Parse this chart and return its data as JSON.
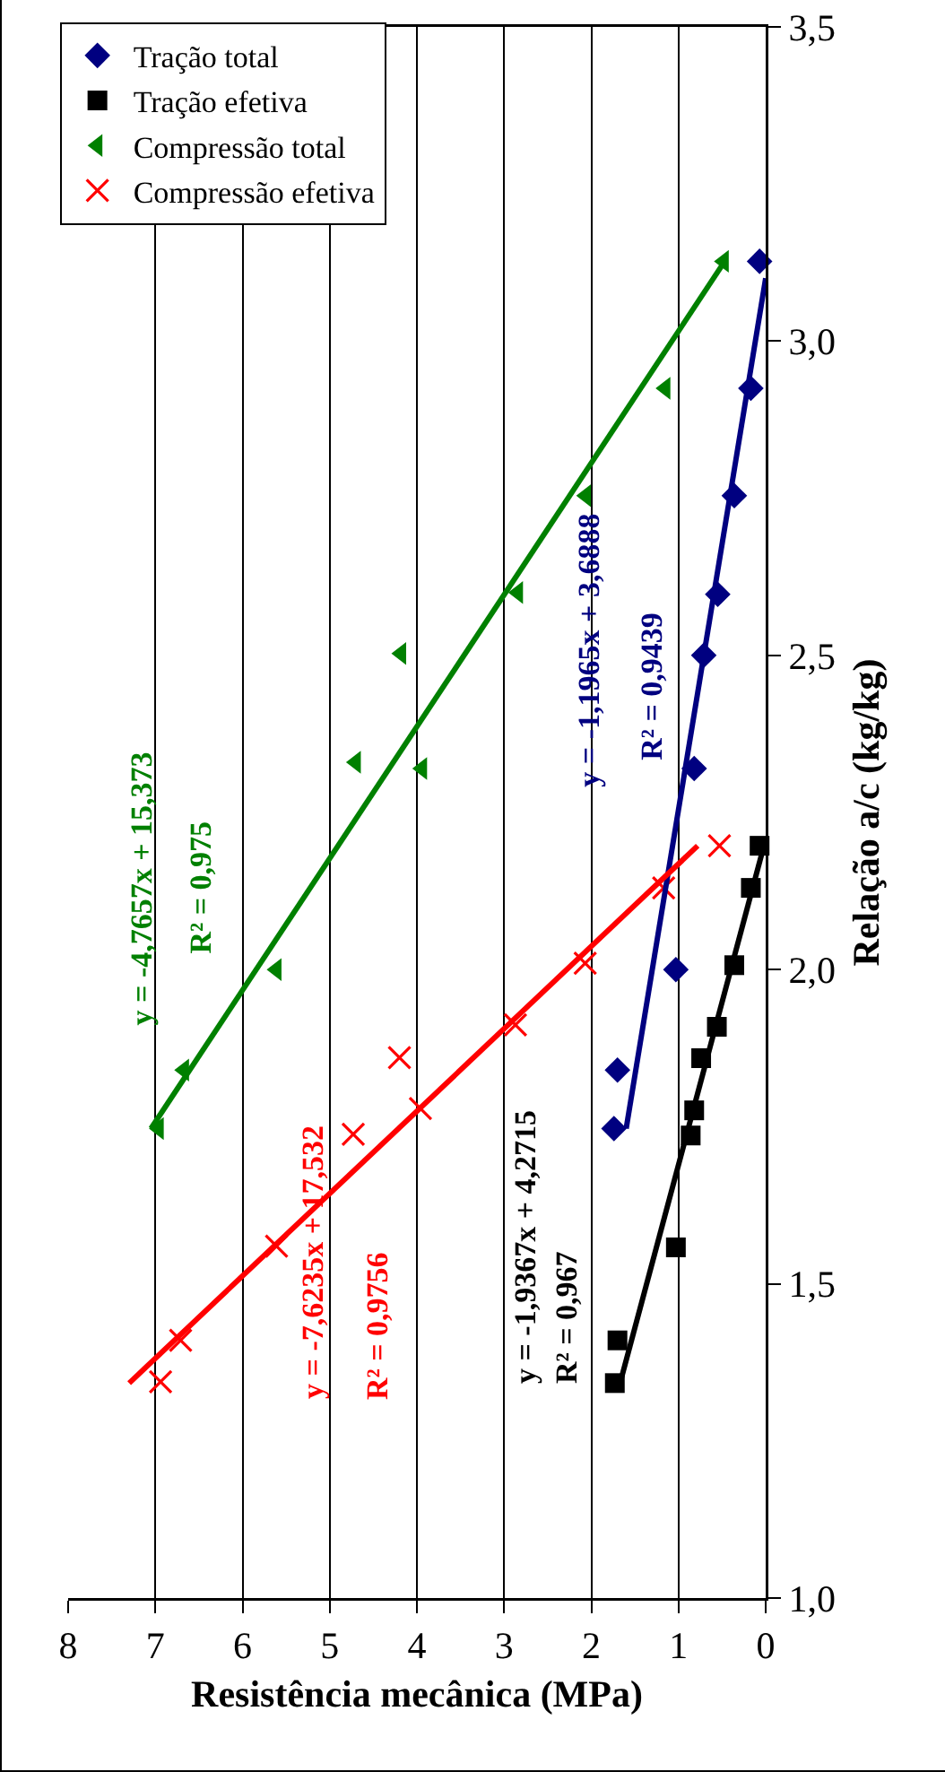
{
  "chart_data": {
    "type": "scatter",
    "xlabel": "Resistência mecânica (MPa)",
    "ylabel": "Relação a/c (kg/kg)",
    "xlim": [
      8,
      0
    ],
    "xticks": [
      8,
      7,
      6,
      5,
      4,
      3,
      2,
      1,
      0
    ],
    "ylim": [
      1.0,
      3.5
    ],
    "yticks": [
      {
        "value": 1.0,
        "label": "1,0"
      },
      {
        "value": 1.5,
        "label": "1,5"
      },
      {
        "value": 2.0,
        "label": "2,0"
      },
      {
        "value": 2.5,
        "label": "2,5"
      },
      {
        "value": 3.0,
        "label": "3,0"
      },
      {
        "value": 3.5,
        "label": "3,5"
      }
    ],
    "grid": "x",
    "legend": "top left",
    "series": [
      {
        "name": "Tração total",
        "color": "#000080",
        "marker": "diamond",
        "x": [
          0.07,
          0.17,
          0.36,
          0.55,
          0.71,
          0.82,
          1.03,
          1.7,
          1.74
        ],
        "values": [
          3.127,
          2.925,
          2.754,
          2.597,
          2.5,
          2.32,
          2.0,
          1.84,
          1.747
        ]
      },
      {
        "name": "Tração efetiva",
        "color": "#000000",
        "marker": "square",
        "x": [
          0.07,
          0.17,
          0.36,
          0.56,
          0.74,
          0.82,
          0.86,
          1.03,
          1.7,
          1.73
        ],
        "values": [
          2.197,
          2.13,
          2.007,
          1.909,
          1.859,
          1.776,
          1.736,
          1.558,
          1.41,
          1.342
        ]
      },
      {
        "name": "Compressão total",
        "color": "#008000",
        "marker": "triangle",
        "x": [
          0.48,
          1.15,
          2.06,
          2.84,
          4.18,
          4.7,
          3.94,
          5.61,
          6.67,
          6.96
        ],
        "values": [
          3.127,
          2.925,
          2.754,
          2.6,
          2.503,
          2.33,
          2.32,
          2.0,
          1.84,
          1.747
        ]
      },
      {
        "name": "Compressão efetiva",
        "color": "#ff0000",
        "marker": "cross",
        "x": [
          0.53,
          1.17,
          2.07,
          2.87,
          4.2,
          3.96,
          4.73,
          5.61,
          6.71,
          6.94
        ],
        "values": [
          2.197,
          2.13,
          2.01,
          1.912,
          1.86,
          1.779,
          1.738,
          1.56,
          1.41,
          1.344
        ]
      },
      {
        "type": "line",
        "color": "#000080",
        "marker": "none",
        "x": [
          1.6,
          0.0
        ],
        "values": [
          1.747,
          3.1
        ]
      },
      {
        "type": "line",
        "color": "#000000",
        "marker": "none",
        "x": [
          1.67,
          0.02
        ],
        "values": [
          1.342,
          2.197
        ]
      },
      {
        "type": "line",
        "color": "#008000",
        "marker": "none",
        "x": [
          7.05,
          0.47
        ],
        "values": [
          1.747,
          3.127
        ]
      },
      {
        "type": "line",
        "color": "#ff0000",
        "marker": "none",
        "x": [
          7.3,
          0.78
        ],
        "values": [
          1.342,
          2.197
        ]
      }
    ],
    "annotations": [
      "y = -1,1965x + 3,6888",
      "R² = 0,9439",
      "y = -1,9367x + 4,2715",
      "R² = 0,967",
      "y = -4,7657x + 15,373",
      "R² = 0,975",
      "y = -7,6235x + 17,532",
      "R² = 0,9756"
    ]
  }
}
